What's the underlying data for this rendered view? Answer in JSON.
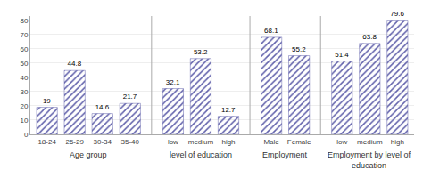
{
  "chart_data": {
    "type": "bar",
    "groups": [
      {
        "label": "Age group",
        "categories": [
          "18-24",
          "25-29",
          "30-34",
          "35-40"
        ],
        "values": [
          19,
          44.8,
          14.6,
          21.7
        ]
      },
      {
        "label": "level of education",
        "categories": [
          "low",
          "medium",
          "high"
        ],
        "values": [
          32.1,
          53.2,
          12.7
        ]
      },
      {
        "label": "Employment",
        "categories": [
          "Male",
          "Female"
        ],
        "values": [
          68.1,
          55.2
        ]
      },
      {
        "label": "Employment by level of\neducation",
        "categories": [
          "low",
          "medium",
          "high"
        ],
        "values": [
          51.4,
          63.8,
          79.6
        ]
      }
    ],
    "color": "#8080cc",
    "ylim": [
      0,
      83
    ],
    "yticks": [
      0,
      10,
      20,
      30,
      40,
      50,
      60,
      70,
      80
    ],
    "grid": true,
    "data_labels": true
  }
}
